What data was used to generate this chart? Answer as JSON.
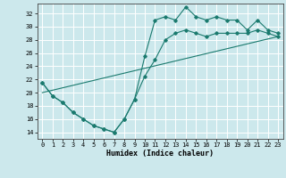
{
  "xlabel": "Humidex (Indice chaleur)",
  "bg_color": "#cce8ec",
  "grid_color": "#ffffff",
  "line_color": "#1a7a6e",
  "xlim": [
    -0.5,
    23.5
  ],
  "ylim": [
    13.0,
    33.5
  ],
  "xticks": [
    0,
    1,
    2,
    3,
    4,
    5,
    6,
    7,
    8,
    9,
    10,
    11,
    12,
    13,
    14,
    15,
    16,
    17,
    18,
    19,
    20,
    21,
    22,
    23
  ],
  "yticks": [
    14,
    16,
    18,
    20,
    22,
    24,
    26,
    28,
    30,
    32
  ],
  "line1_x": [
    0,
    1,
    2,
    3,
    4,
    5,
    6,
    7,
    8,
    9,
    10,
    11,
    12,
    13,
    14,
    15,
    16,
    17,
    18,
    19,
    20,
    21,
    22,
    23
  ],
  "line1_y": [
    21.5,
    19.5,
    18.5,
    17.0,
    16.0,
    15.0,
    14.5,
    14.0,
    16.0,
    19.0,
    25.5,
    31.0,
    31.5,
    31.0,
    33.0,
    31.5,
    31.0,
    31.5,
    31.0,
    31.0,
    29.5,
    31.0,
    29.5,
    29.0
  ],
  "line2_x": [
    0,
    1,
    2,
    3,
    4,
    5,
    6,
    7,
    8,
    9,
    10,
    11,
    12,
    13,
    14,
    15,
    16,
    17,
    18,
    19,
    20,
    21,
    22,
    23
  ],
  "line2_y": [
    21.5,
    19.5,
    18.5,
    17.0,
    16.0,
    15.0,
    14.5,
    14.0,
    16.0,
    19.0,
    22.5,
    25.0,
    28.0,
    29.0,
    29.5,
    29.0,
    28.5,
    29.0,
    29.0,
    29.0,
    29.0,
    29.5,
    29.0,
    28.5
  ],
  "line3_x": [
    0,
    23
  ],
  "line3_y": [
    20.0,
    28.5
  ]
}
